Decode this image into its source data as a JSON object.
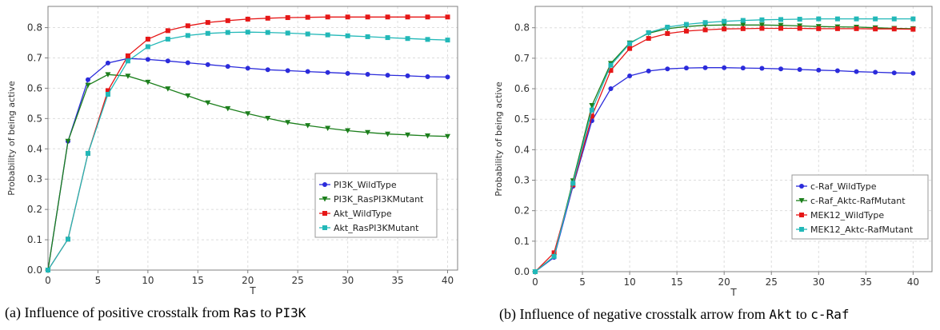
{
  "colors": {
    "blue": "#2b2bdb",
    "green": "#1c7f1c",
    "red": "#e61717",
    "cyan": "#22b8b8",
    "grid": "#dddddd",
    "axis": "#808080"
  },
  "captions": {
    "a": {
      "prefix": "(a)",
      "text": "Influence of positive crosstalk from ",
      "code1": "Ras",
      "mid": " to ",
      "code2": "PI3K"
    },
    "b": {
      "prefix": "(b)",
      "text": "Influence of negative crosstalk arrow from ",
      "code1": "Akt",
      "mid": " to ",
      "code2": "c-Raf"
    }
  },
  "chart_data": [
    {
      "type": "line",
      "xlabel": "T",
      "ylabel": "Probability of being active",
      "xlim": [
        0,
        41
      ],
      "ylim": [
        0,
        0.87
      ],
      "xticks": [
        0,
        5,
        10,
        15,
        20,
        25,
        30,
        35,
        40
      ],
      "yticks": [
        0.0,
        0.1,
        0.2,
        0.3,
        0.4,
        0.5,
        0.6,
        0.7,
        0.8
      ],
      "grid": true,
      "legend_position": "bottom-right",
      "x": [
        0,
        2,
        4,
        6,
        8,
        10,
        12,
        14,
        16,
        18,
        20,
        22,
        24,
        26,
        28,
        30,
        32,
        34,
        36,
        38,
        40
      ],
      "series": [
        {
          "name": "PI3K_WildType",
          "color": "blue",
          "marker": "circle",
          "values": [
            0,
            0.425,
            0.628,
            0.683,
            0.698,
            0.695,
            0.69,
            0.684,
            0.678,
            0.672,
            0.666,
            0.661,
            0.658,
            0.655,
            0.652,
            0.649,
            0.646,
            0.643,
            0.641,
            0.638,
            0.637
          ]
        },
        {
          "name": "PI3K_RasPI3KMutant",
          "color": "green",
          "marker": "triangle-down",
          "values": [
            0,
            0.425,
            0.61,
            0.645,
            0.64,
            0.62,
            0.598,
            0.575,
            0.552,
            0.533,
            0.516,
            0.501,
            0.487,
            0.477,
            0.468,
            0.46,
            0.454,
            0.449,
            0.446,
            0.443,
            0.441
          ]
        },
        {
          "name": "Akt_WildType",
          "color": "red",
          "marker": "square",
          "values": [
            0,
            0.102,
            0.385,
            0.592,
            0.707,
            0.762,
            0.79,
            0.806,
            0.817,
            0.823,
            0.828,
            0.831,
            0.833,
            0.834,
            0.835,
            0.835,
            0.835,
            0.835,
            0.835,
            0.835,
            0.835
          ]
        },
        {
          "name": "Akt_RasPI3KMutant",
          "color": "cyan",
          "marker": "square",
          "values": [
            0,
            0.102,
            0.385,
            0.58,
            0.69,
            0.737,
            0.762,
            0.774,
            0.781,
            0.784,
            0.785,
            0.784,
            0.782,
            0.779,
            0.776,
            0.773,
            0.77,
            0.767,
            0.764,
            0.761,
            0.759
          ]
        }
      ]
    },
    {
      "type": "line",
      "xlabel": "T",
      "ylabel": "Probability of being active",
      "xlim": [
        0,
        42
      ],
      "ylim": [
        0,
        0.87
      ],
      "xticks": [
        0,
        5,
        10,
        15,
        20,
        25,
        30,
        35,
        40
      ],
      "yticks": [
        0.0,
        0.1,
        0.2,
        0.3,
        0.4,
        0.5,
        0.6,
        0.7,
        0.8
      ],
      "grid": true,
      "legend_position": "bottom-right",
      "x": [
        0,
        2,
        4,
        6,
        8,
        10,
        12,
        14,
        16,
        18,
        20,
        22,
        24,
        26,
        28,
        30,
        32,
        34,
        36,
        38,
        40
      ],
      "series": [
        {
          "name": "c-Raf_WildType",
          "color": "blue",
          "marker": "circle",
          "values": [
            0,
            0.047,
            0.28,
            0.495,
            0.6,
            0.642,
            0.658,
            0.665,
            0.668,
            0.669,
            0.669,
            0.668,
            0.667,
            0.665,
            0.663,
            0.661,
            0.659,
            0.656,
            0.654,
            0.652,
            0.651
          ]
        },
        {
          "name": "c-Raf_Aktc-RafMutant",
          "color": "green",
          "marker": "triangle-down",
          "values": [
            0,
            0.05,
            0.298,
            0.545,
            0.683,
            0.75,
            0.782,
            0.797,
            0.804,
            0.808,
            0.809,
            0.809,
            0.809,
            0.808,
            0.806,
            0.804,
            0.803,
            0.802,
            0.8,
            0.798,
            0.797
          ]
        },
        {
          "name": "MEK12_WildType",
          "color": "red",
          "marker": "square",
          "values": [
            0,
            0.062,
            0.285,
            0.51,
            0.66,
            0.732,
            0.765,
            0.781,
            0.789,
            0.793,
            0.796,
            0.797,
            0.798,
            0.798,
            0.798,
            0.797,
            0.797,
            0.797,
            0.796,
            0.796,
            0.795
          ]
        },
        {
          "name": "MEK12_Aktc-RafMutant",
          "color": "cyan",
          "marker": "square",
          "values": [
            0,
            0.05,
            0.29,
            0.53,
            0.677,
            0.748,
            0.784,
            0.802,
            0.811,
            0.817,
            0.821,
            0.824,
            0.826,
            0.827,
            0.828,
            0.829,
            0.829,
            0.829,
            0.829,
            0.829,
            0.829
          ]
        }
      ]
    }
  ]
}
